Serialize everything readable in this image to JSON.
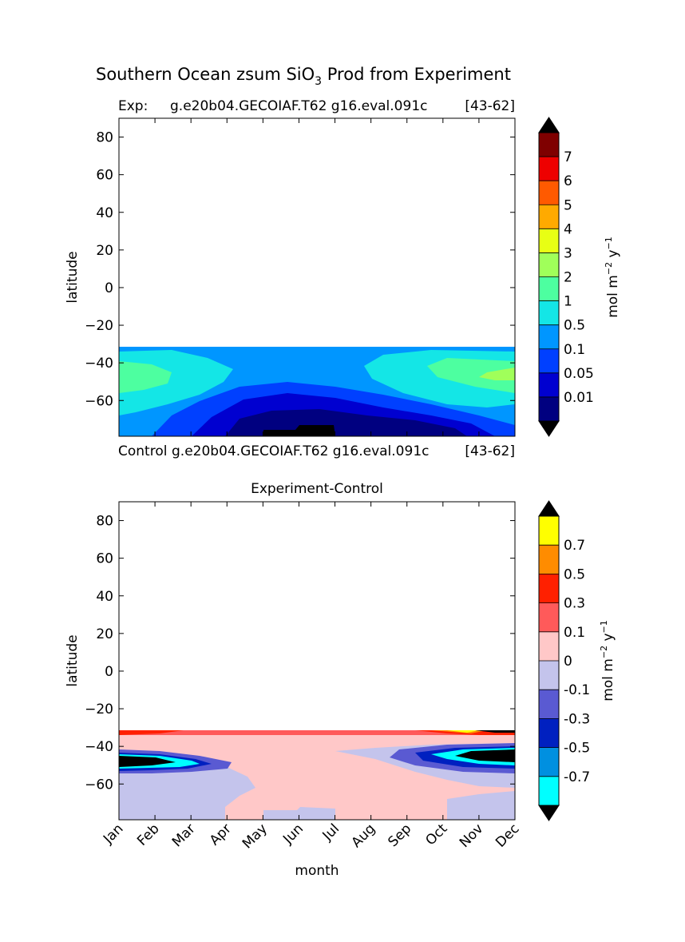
{
  "figure": {
    "title_prefix": "Southern Ocean zsum SiO",
    "title_sub": "3",
    "title_suffix": " Prod from Experiment"
  },
  "chart_data": [
    {
      "type": "heatmap",
      "title_left": "Exp:",
      "title_center": "g.e20b04.GECOIAF.T62 g16.eval.091c",
      "title_right": "[43-62]",
      "xlabel": "",
      "ylabel": "latitude",
      "ylim": [
        -79,
        90
      ],
      "yticks": [
        80,
        60,
        40,
        20,
        0,
        -20,
        -40,
        -60
      ],
      "ytick_labels": [
        "80",
        "60",
        "40",
        "20",
        "0",
        "−20",
        "−40",
        "−60"
      ],
      "x_categories": [
        "Jan",
        "Feb",
        "Mar",
        "Apr",
        "May",
        "Jun",
        "Jul",
        "Aug",
        "Sep",
        "Oct",
        "Nov",
        "Dec"
      ],
      "data_lat_range": [
        -79,
        -31
      ],
      "colorbar": {
        "unit_main": "mol m",
        "unit_exp1": "−2",
        "unit_mid": " y",
        "unit_exp2": "−1",
        "labels": [
          "7",
          "6",
          "5",
          "4",
          "3",
          "2",
          "1",
          "0.5",
          "0.1",
          "0.05",
          "0.01"
        ],
        "colors": [
          "#7f0000",
          "#ee0000",
          "#ff5a00",
          "#ffaa00",
          "#e8ff14",
          "#a0ff5a",
          "#4dffa0",
          "#14e6e6",
          "#0096ff",
          "#0040ff",
          "#0000d0",
          "#000080"
        ],
        "extend_low": "#000000",
        "extend_high": "#000000"
      },
      "bottom_label_left": "Control",
      "bottom_label_center": "g.e20b04.GECOIAF.T62 g16.eval.091c",
      "bottom_label_right": "[43-62]"
    },
    {
      "type": "heatmap",
      "title": "Experiment-Control",
      "xlabel": "month",
      "ylabel": "latitude",
      "ylim": [
        -79,
        90
      ],
      "yticks": [
        80,
        60,
        40,
        20,
        0,
        -20,
        -40,
        -60
      ],
      "ytick_labels": [
        "80",
        "60",
        "40",
        "20",
        "0",
        "−20",
        "−40",
        "−60"
      ],
      "x_categories": [
        "Jan",
        "Feb",
        "Mar",
        "Apr",
        "May",
        "Jun",
        "Jul",
        "Aug",
        "Sep",
        "Oct",
        "Nov",
        "Dec"
      ],
      "data_lat_range": [
        -79,
        -31
      ],
      "colorbar": {
        "unit_main": "mol m",
        "unit_exp1": "−2",
        "unit_mid": " y",
        "unit_exp2": "−1",
        "labels": [
          "0.7",
          "0.5",
          "0.3",
          "0.1",
          "0",
          "-0.1",
          "-0.3",
          "-0.5",
          "-0.7"
        ],
        "colors": [
          "#ffff00",
          "#ff8c00",
          "#ff2000",
          "#ff5a5a",
          "#ffc8c8",
          "#c4c4ec",
          "#5a5ad2",
          "#0020c0",
          "#0090e0",
          "#00ffff"
        ],
        "extend_low": "#000000",
        "extend_high": "#000000"
      }
    }
  ]
}
